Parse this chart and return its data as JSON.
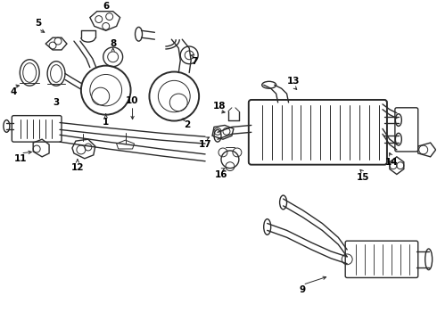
{
  "bg_color": "#ffffff",
  "line_color": "#2a2a2a",
  "figsize": [
    4.9,
    3.6
  ],
  "dpi": 100,
  "xlim": [
    0,
    490
  ],
  "ylim": [
    0,
    360
  ]
}
